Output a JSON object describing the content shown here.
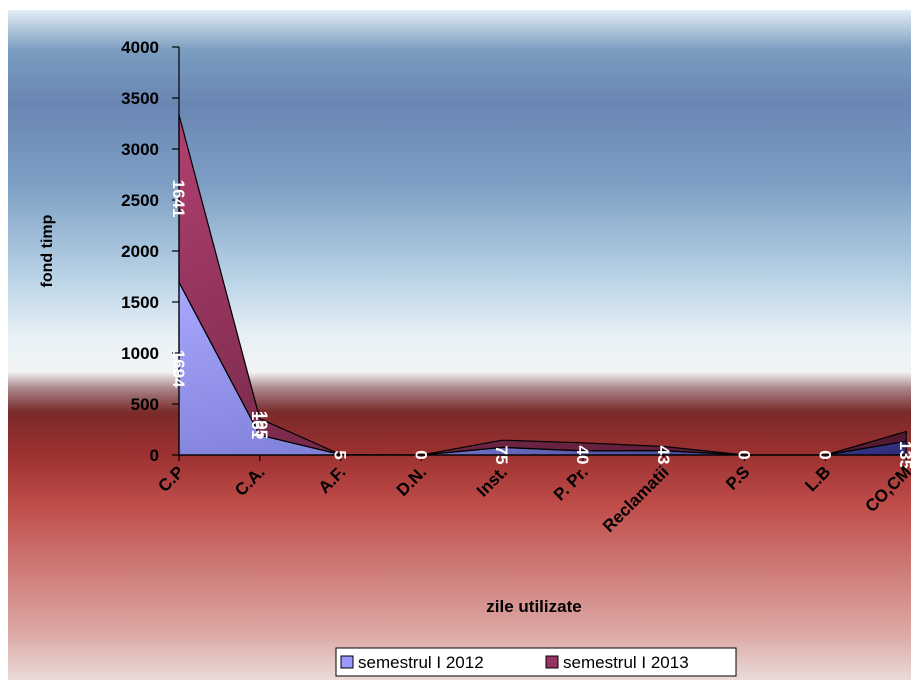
{
  "chart_data": {
    "type": "area",
    "stacked": true,
    "title": "",
    "xlabel": "zile utilizate",
    "ylabel": "fond timp",
    "categories": [
      "C.P",
      "C.A.",
      "A.F.",
      "D.N.",
      "Inst.",
      "P. Pr.",
      "Reclamatii",
      "P.S",
      "L.B",
      "CO,CM"
    ],
    "series": [
      {
        "name": "semestrul I 2012",
        "values": [
          1694,
          195,
          5,
          0,
          75,
          40,
          43,
          0,
          0,
          135
        ],
        "color": "#9999ff",
        "labels": [
          "1694",
          "195",
          "5",
          "0",
          "75",
          "40",
          "43",
          "0",
          "0",
          "135"
        ]
      },
      {
        "name": "semestrul I 2013",
        "values": [
          1641,
          161,
          0,
          0,
          70,
          80,
          40,
          0,
          0,
          95
        ],
        "color": "#993366",
        "labels": [
          "1641",
          "161",
          "",
          "",
          "",
          "",
          "",
          "",
          "",
          ""
        ]
      }
    ],
    "ylim": [
      0,
      4000
    ],
    "yticks": [
      0,
      500,
      1000,
      1500,
      2000,
      2500,
      3000,
      3500,
      4000
    ],
    "grid": false,
    "legend_position": "bottom"
  }
}
